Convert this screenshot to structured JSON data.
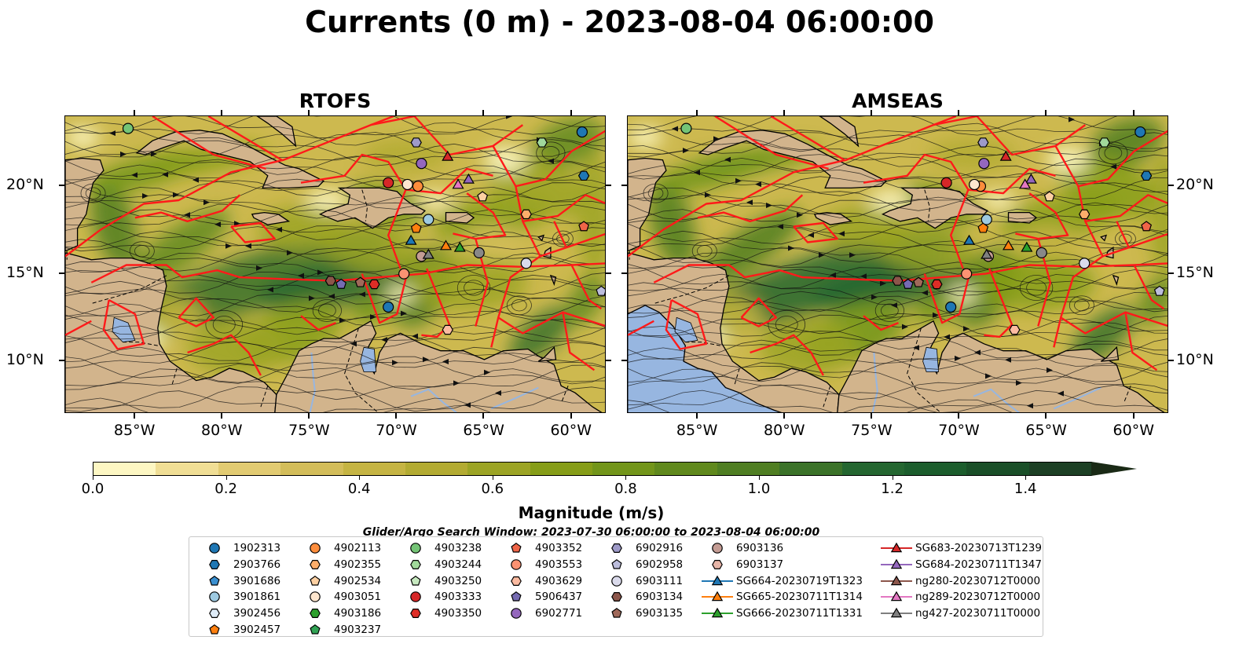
{
  "title": "Currents (0 m) - 2023-08-04 06:00:00",
  "panels": [
    {
      "title": "RTOFS",
      "ocean_left": false
    },
    {
      "title": "AMSEAS",
      "ocean_left": true
    }
  ],
  "lon_ticks": [
    "85°W",
    "80°W",
    "75°W",
    "70°W",
    "65°W",
    "60°W"
  ],
  "lat_ticks": [
    "20°N",
    "15°N",
    "10°N"
  ],
  "colorbar": {
    "label": "Magnitude (m/s)",
    "ticks": [
      "0.0",
      "0.2",
      "0.4",
      "0.6",
      "0.8",
      "1.0",
      "1.2",
      "1.4"
    ],
    "range": [
      0.0,
      1.5
    ],
    "colors": [
      "#fdf7c3",
      "#f0de95",
      "#e2cb72",
      "#d3bd5a",
      "#c5b443",
      "#b3ab32",
      "#9ca425",
      "#869d18",
      "#72951a",
      "#60891d",
      "#4f7e22",
      "#3b7229",
      "#246630",
      "#1c5d2d",
      "#1a4f28",
      "#1d4025",
      "#1a2a16"
    ]
  },
  "search_window": "Glider/Argo Search Window: 2023-07-30 06:00:00 to 2023-08-04 06:00:00",
  "legend": [
    {
      "label": "1902313",
      "shape": "circle",
      "color": "#1f77b4"
    },
    {
      "label": "2903766",
      "shape": "hexagon",
      "color": "#1f77b4"
    },
    {
      "label": "3901686",
      "shape": "pentagon",
      "color": "#3a8fd0"
    },
    {
      "label": "3901861",
      "shape": "circle",
      "color": "#9ecae1"
    },
    {
      "label": "3902456",
      "shape": "hexagon",
      "color": "#deebf7"
    },
    {
      "label": "3902457",
      "shape": "pentagon",
      "color": "#ff7f0e"
    },
    {
      "label": "4902113",
      "shape": "circle",
      "color": "#fd8d3c"
    },
    {
      "label": "4902355",
      "shape": "hexagon",
      "color": "#fdae6b"
    },
    {
      "label": "4902534",
      "shape": "pentagon",
      "color": "#fdd0a2"
    },
    {
      "label": "4903051",
      "shape": "circle",
      "color": "#fee6ce"
    },
    {
      "label": "4903186",
      "shape": "hexagon",
      "color": "#2ca02c"
    },
    {
      "label": "4903237",
      "shape": "pentagon",
      "color": "#31a354"
    },
    {
      "label": "4903238",
      "shape": "circle",
      "color": "#74c476"
    },
    {
      "label": "4903244",
      "shape": "hexagon",
      "color": "#a1d99b"
    },
    {
      "label": "4903250",
      "shape": "pentagon",
      "color": "#c7e9c0"
    },
    {
      "label": "4903333",
      "shape": "circle",
      "color": "#d62728"
    },
    {
      "label": "4903350",
      "shape": "hexagon",
      "color": "#de2d26"
    },
    {
      "label": "4903352",
      "shape": "pentagon",
      "color": "#ef6548"
    },
    {
      "label": "4903553",
      "shape": "circle",
      "color": "#fc9272"
    },
    {
      "label": "4903629",
      "shape": "hexagon",
      "color": "#fcbba1"
    },
    {
      "label": "5906437",
      "shape": "pentagon",
      "color": "#756bb1"
    },
    {
      "label": "6902771",
      "shape": "circle",
      "color": "#9467bd"
    },
    {
      "label": "6902916",
      "shape": "hexagon",
      "color": "#9e9ac8"
    },
    {
      "label": "6902958",
      "shape": "pentagon",
      "color": "#bcbddc"
    },
    {
      "label": "6903111",
      "shape": "circle",
      "color": "#dadaeb"
    },
    {
      "label": "6903134",
      "shape": "hexagon",
      "color": "#8c564b"
    },
    {
      "label": "6903135",
      "shape": "pentagon",
      "color": "#a0695a"
    },
    {
      "label": "6903136",
      "shape": "circle",
      "color": "#c49c94"
    },
    {
      "label": "6903137",
      "shape": "hexagon",
      "color": "#e7b5a8"
    },
    {
      "label": "SG664-20230719T1323",
      "shape": "triangle",
      "color": "#1f77b4"
    },
    {
      "label": "SG665-20230711T1314",
      "shape": "triangle",
      "color": "#ff7f0e"
    },
    {
      "label": "SG666-20230711T1331",
      "shape": "triangle",
      "color": "#2ca02c"
    },
    {
      "label": "SG683-20230713T1239",
      "shape": "triangle",
      "color": "#d62728"
    },
    {
      "label": "SG684-20230711T1347",
      "shape": "triangle",
      "color": "#9467bd"
    },
    {
      "label": "ng280-20230712T0000",
      "shape": "triangle",
      "color": "#8c564b"
    },
    {
      "label": "ng289-20230712T0000",
      "shape": "triangle",
      "color": "#e377c2"
    },
    {
      "label": "ng427-20230711T0000",
      "shape": "triangle",
      "color": "#7f7f7f"
    }
  ],
  "map_extent": {
    "lon": [
      -89,
      -58
    ],
    "lat": [
      7,
      24
    ]
  },
  "markers": [
    {
      "id": "1902313",
      "lon": -59.4,
      "lat": 23.1
    },
    {
      "id": "2903766",
      "lon": -59.3,
      "lat": 20.6
    },
    {
      "id": "3902457",
      "lon": -68.9,
      "lat": 17.6
    },
    {
      "id": "3901861",
      "lon": -68.2,
      "lat": 18.1
    },
    {
      "id": "4902113",
      "lon": -68.8,
      "lat": 20.0
    },
    {
      "id": "4903051",
      "lon": -69.4,
      "lat": 20.1
    },
    {
      "id": "4903333",
      "lon": -70.5,
      "lat": 20.2
    },
    {
      "id": "6902771",
      "lon": -68.6,
      "lat": 21.3
    },
    {
      "id": "6902916",
      "lon": -68.9,
      "lat": 22.5
    },
    {
      "id": "4903238",
      "lon": -85.4,
      "lat": 23.3
    },
    {
      "id": "4903244",
      "lon": -61.7,
      "lat": 22.5
    },
    {
      "id": "4902534",
      "lon": -65.1,
      "lat": 19.4
    },
    {
      "id": "4902355",
      "lon": -62.6,
      "lat": 18.4
    },
    {
      "id": "4903352",
      "lon": -59.3,
      "lat": 17.7
    },
    {
      "id": "6903136",
      "lon": -68.6,
      "lat": 16.0
    },
    {
      "id": "6903111",
      "lon": -62.6,
      "lat": 15.6
    },
    {
      "id": "4903553",
      "lon": -69.6,
      "lat": 15.0
    },
    {
      "id": "6903134",
      "lon": -73.8,
      "lat": 14.6
    },
    {
      "id": "6903135",
      "lon": -72.1,
      "lat": 14.5
    },
    {
      "id": "4903350",
      "lon": -71.3,
      "lat": 14.4
    },
    {
      "id": "5906437",
      "lon": -73.2,
      "lat": 14.4
    },
    {
      "id": "6902958",
      "lon": -58.3,
      "lat": 14.0
    },
    {
      "id": "1902313b",
      "lon": -70.5,
      "lat": 13.1
    },
    {
      "id": "4903629",
      "lon": -67.1,
      "lat": 11.8
    },
    {
      "id": "SG683-20230713T1239",
      "lon": -67.1,
      "lat": 21.7
    },
    {
      "id": "SG684-20230711T1347",
      "lon": -65.9,
      "lat": 20.4
    },
    {
      "id": "ng289-20230712T0000",
      "lon": -66.5,
      "lat": 20.1
    },
    {
      "id": "SG664-20230719T1323",
      "lon": -69.2,
      "lat": 16.9
    },
    {
      "id": "SG665-20230711T1314",
      "lon": -67.2,
      "lat": 16.6
    },
    {
      "id": "SG666-20230711T1331",
      "lon": -66.4,
      "lat": 16.5
    },
    {
      "id": "ng427-20230711T0000",
      "lon": -68.2,
      "lat": 16.1
    },
    {
      "id": "SG684b",
      "lon": -65.3,
      "lat": 16.2
    }
  ]
}
